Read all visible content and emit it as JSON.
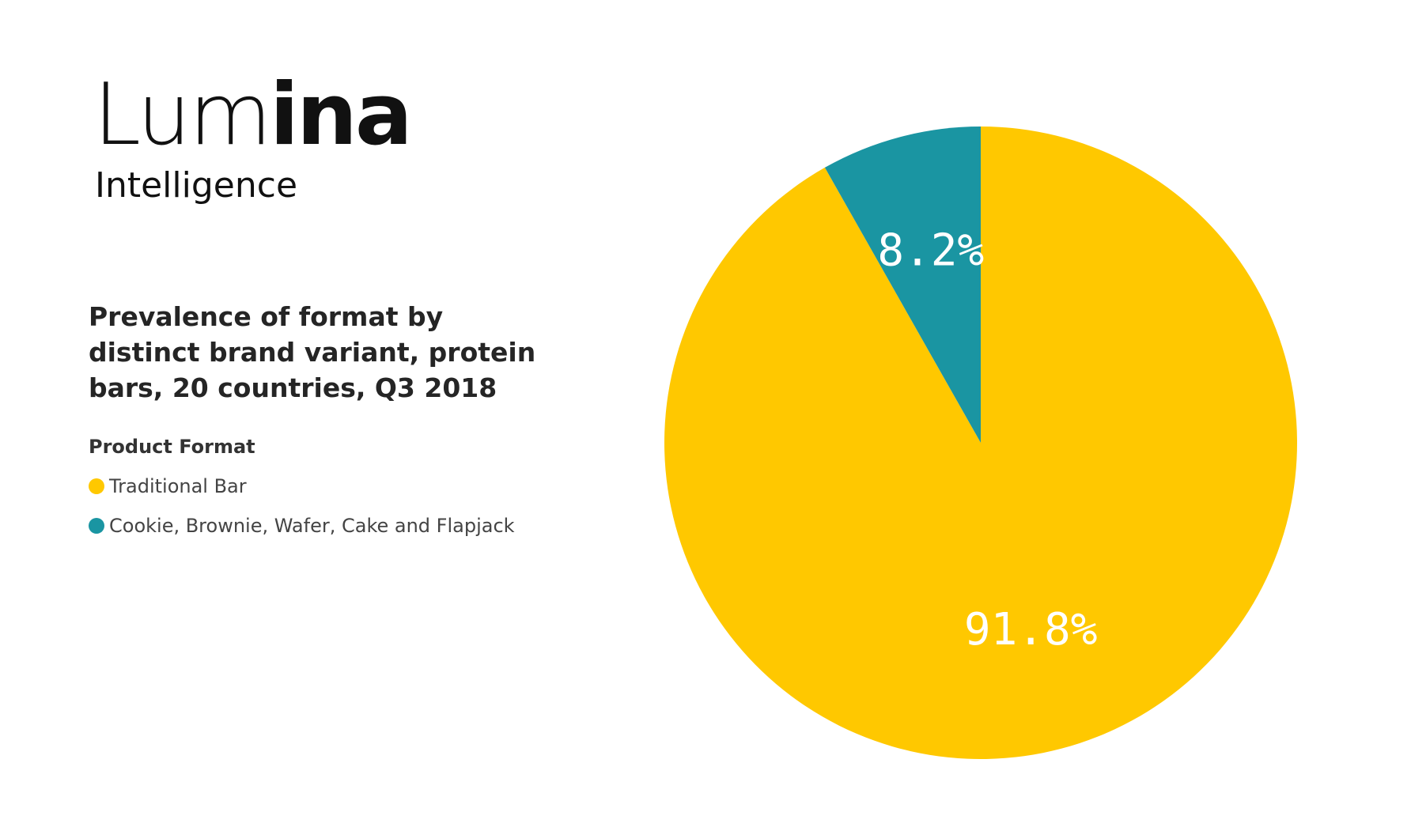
{
  "logo": {
    "word_light": "Lum",
    "word_bold": "ina",
    "subtitle": "Intelligence"
  },
  "colors": {
    "traditional_bar": "#FFC800",
    "cookie_etc": "#1A95A2"
  },
  "chart_data": {
    "type": "pie",
    "title": "Prevalence of format by distinct brand variant, protein bars, 20 countries, Q3 2018",
    "legend_title": "Product Format",
    "categories": [
      "Traditional Bar",
      "Cookie, Brownie, Wafer, Cake and Flapjack"
    ],
    "values": [
      91.8,
      8.2
    ],
    "labels": [
      "91.8%",
      "8.2%"
    ],
    "colors": [
      "#FFC800",
      "#1A95A2"
    ],
    "start_angle_deg": 0,
    "direction": "clockwise",
    "legend_position": "left"
  }
}
